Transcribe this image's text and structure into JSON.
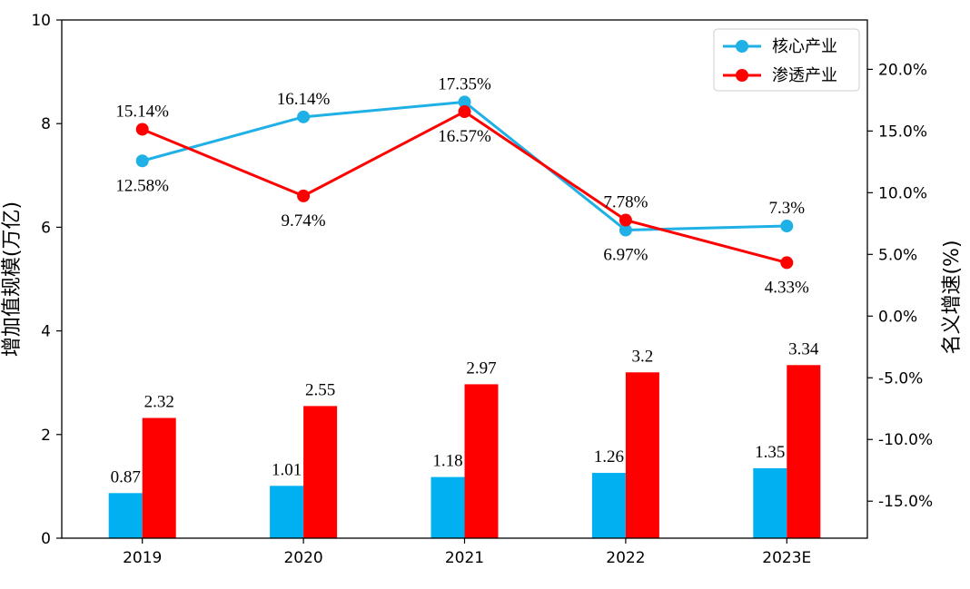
{
  "chart_data": {
    "type": "bar+line",
    "categories": [
      "2019",
      "2020",
      "2021",
      "2022",
      "2023E"
    ],
    "bar_series": [
      {
        "values": [
          0.87,
          1.01,
          1.18,
          1.26,
          1.35
        ],
        "labels": [
          "0.87",
          "1.01",
          "1.18",
          "1.26",
          "1.35"
        ],
        "color": "#00b0f0"
      },
      {
        "values": [
          2.32,
          2.55,
          2.97,
          3.2,
          3.34
        ],
        "labels": [
          "2.32",
          "2.55",
          "2.97",
          "3.2",
          "3.34"
        ],
        "color": "#ff0000"
      }
    ],
    "line_series": [
      {
        "name": "核心产业",
        "values": [
          12.58,
          16.14,
          17.35,
          6.97,
          7.3
        ],
        "labels": [
          "12.58%",
          "16.14%",
          "17.35%",
          "6.97%",
          "7.3%"
        ],
        "color": "#1fb0e6"
      },
      {
        "name": "渗透产业",
        "values": [
          15.14,
          9.74,
          16.57,
          7.78,
          4.33
        ],
        "labels": [
          "15.14%",
          "9.74%",
          "16.57%",
          "7.78%",
          "4.33%"
        ],
        "color": "#ff0000"
      }
    ],
    "y_left": {
      "label": "增加值规模(万亿)",
      "lim": [
        0,
        10
      ],
      "ticks": [
        "0",
        "2",
        "4",
        "6",
        "8",
        "10"
      ]
    },
    "y_right": {
      "label": "名义增速(%)",
      "lim": [
        -18,
        24
      ],
      "ticks": [
        "-15.0%",
        "-10.0%",
        "-5.0%",
        "0.0%",
        "5.0%",
        "10.0%",
        "15.0%",
        "20.0%"
      ]
    },
    "legend_position": "top-right",
    "grid": false
  }
}
